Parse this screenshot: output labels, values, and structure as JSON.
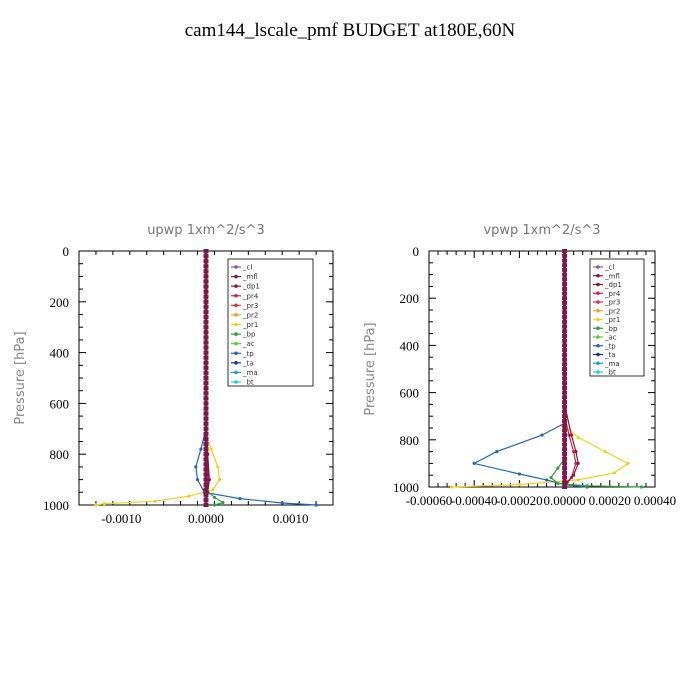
{
  "title": "cam144_lscale_pmf  BUDGET at180E,60N",
  "legend_entries": [
    "_cl",
    "_mfl",
    "_dp1",
    "_pr4",
    "_pr3",
    "_pr2",
    "_pr1",
    "_bp",
    "_ac",
    "_tp",
    "_ta",
    "_ma",
    "_bt"
  ],
  "colors": {
    "_cl": "#8855aa",
    "_mfl": "#7a1a4a",
    "_dp1": "#8b1a3a",
    "_pr4": "#cc2255",
    "_pr3": "#e03040",
    "_pr2": "#f0a030",
    "_pr1": "#f0d020",
    "_bp": "#30a040",
    "_ac": "#55cc33",
    "_tp": "#2266bb",
    "_ta": "#223399",
    "_ma": "#2299cc",
    "_bt": "#22ccdd"
  },
  "chart_data": [
    {
      "type": "line",
      "title": "upwp   1xm^2/s^3",
      "ylabel": "Pressure [hPa]",
      "xlabel": "",
      "ylim": [
        1000,
        0
      ],
      "xlim": [
        -0.0015,
        0.0015
      ],
      "xticks": [
        -0.001,
        0.0,
        0.001
      ],
      "xtick_labels": [
        "-0.0010",
        "0.0000",
        "0.0010"
      ],
      "yticks": [
        0,
        200,
        400,
        600,
        800,
        1000
      ],
      "grid": false,
      "legend_position": "top-right",
      "series": [
        {
          "name": "_cl",
          "points": [
            [
              0,
              0
            ],
            [
              0,
              1000
            ]
          ]
        },
        {
          "name": "_mfl",
          "points": [
            [
              0,
              0
            ],
            [
              0,
              1000
            ]
          ]
        },
        {
          "name": "_dp1",
          "points": [
            [
              0,
              0
            ],
            [
              0,
              600
            ],
            [
              2e-05,
              800
            ],
            [
              4e-05,
              900
            ],
            [
              2e-05,
              950
            ],
            [
              0,
              1000
            ]
          ]
        },
        {
          "name": "_pr4",
          "points": [
            [
              0,
              0
            ],
            [
              0,
              700
            ],
            [
              2e-05,
              800
            ],
            [
              3e-05,
              900
            ],
            [
              0,
              1000
            ]
          ]
        },
        {
          "name": "_pr3",
          "points": [
            [
              0,
              0
            ],
            [
              0,
              1000
            ]
          ]
        },
        {
          "name": "_pr2",
          "points": [
            [
              0,
              0
            ],
            [
              0,
              1000
            ]
          ]
        },
        {
          "name": "_pr1",
          "points": [
            [
              0,
              0
            ],
            [
              0,
              720
            ],
            [
              6e-05,
              780
            ],
            [
              0.00014,
              850
            ],
            [
              0.00016,
              900
            ],
            [
              8e-05,
              940
            ],
            [
              -0.0002,
              965
            ],
            [
              -0.0006,
              985
            ],
            [
              -0.0012,
              995
            ],
            [
              -0.0013,
              1000
            ]
          ]
        },
        {
          "name": "_bp",
          "points": [
            [
              0,
              0
            ],
            [
              0,
              940
            ],
            [
              0.0001,
              970
            ],
            [
              0.0002,
              990
            ],
            [
              0.0001,
              1000
            ]
          ]
        },
        {
          "name": "_ac",
          "points": [
            [
              0,
              0
            ],
            [
              0,
              1000
            ]
          ]
        },
        {
          "name": "_tp",
          "points": [
            [
              0,
              0
            ],
            [
              0,
              700
            ],
            [
              -6e-05,
              780
            ],
            [
              -0.00012,
              850
            ],
            [
              -0.0001,
              900
            ],
            [
              -2e-05,
              950
            ],
            [
              0.0004,
              975
            ],
            [
              0.0009,
              992
            ],
            [
              0.0013,
              1000
            ]
          ]
        },
        {
          "name": "_ta",
          "points": [
            [
              0,
              0
            ],
            [
              0,
              1000
            ]
          ]
        },
        {
          "name": "_ma",
          "points": [
            [
              0,
              0
            ],
            [
              0,
              1000
            ]
          ]
        },
        {
          "name": "_bt",
          "points": [
            [
              0,
              0
            ],
            [
              0,
              1000
            ]
          ]
        }
      ]
    },
    {
      "type": "line",
      "title": "vpwp   1xm^2/s^3",
      "ylabel": "Pressure [hPa]",
      "xlabel": "",
      "ylim": [
        1000,
        0
      ],
      "xlim": [
        -0.0006,
        0.0004
      ],
      "xticks": [
        -0.0006,
        -0.0004,
        -0.0002,
        0.0,
        0.0002,
        0.0004
      ],
      "xtick_labels": [
        "-0.00060",
        "-0.00040",
        "-0.00020",
        "0.00000",
        "0.00020",
        "0.00040"
      ],
      "yticks": [
        0,
        200,
        400,
        600,
        800,
        1000
      ],
      "grid": false,
      "legend_position": "top-right",
      "series": [
        {
          "name": "_cl",
          "points": [
            [
              0,
              0
            ],
            [
              0,
              1000
            ]
          ]
        },
        {
          "name": "_mfl",
          "points": [
            [
              0,
              0
            ],
            [
              0,
              1000
            ]
          ]
        },
        {
          "name": "_dp1",
          "points": [
            [
              0,
              0
            ],
            [
              0,
              650
            ],
            [
              3e-05,
              780
            ],
            [
              5e-05,
              850
            ],
            [
              6e-05,
              900
            ],
            [
              4e-05,
              950
            ],
            [
              1e-05,
              980
            ],
            [
              0,
              1000
            ]
          ]
        },
        {
          "name": "_pr4",
          "points": [
            [
              0,
              0
            ],
            [
              0,
              700
            ],
            [
              2e-05,
              780
            ],
            [
              4e-05,
              850
            ],
            [
              5e-05,
              900
            ],
            [
              3e-05,
              960
            ],
            [
              0,
              1000
            ]
          ]
        },
        {
          "name": "_pr3",
          "points": [
            [
              0,
              0
            ],
            [
              0,
              1000
            ]
          ]
        },
        {
          "name": "_pr2",
          "points": [
            [
              0,
              0
            ],
            [
              0,
              1000
            ]
          ]
        },
        {
          "name": "_pr1",
          "points": [
            [
              0,
              0
            ],
            [
              0,
              740
            ],
            [
              6e-05,
              790
            ],
            [
              0.00018,
              850
            ],
            [
              0.00028,
              900
            ],
            [
              0.00022,
              940
            ],
            [
              6e-05,
              970
            ],
            [
              -0.0002,
              990
            ],
            [
              -0.0005,
              1000
            ]
          ]
        },
        {
          "name": "_bp",
          "points": [
            [
              0,
              0
            ],
            [
              0,
              880
            ],
            [
              -3e-05,
              920
            ],
            [
              -6e-05,
              960
            ],
            [
              -3e-05,
              985
            ],
            [
              0.0001,
              995
            ],
            [
              0.00034,
              1000
            ]
          ]
        },
        {
          "name": "_ac",
          "points": [
            [
              0,
              0
            ],
            [
              0,
              1000
            ]
          ]
        },
        {
          "name": "_tp",
          "points": [
            [
              0,
              0
            ],
            [
              0,
              730
            ],
            [
              -0.0001,
              780
            ],
            [
              -0.0003,
              850
            ],
            [
              -0.0004,
              900
            ],
            [
              -0.0002,
              945
            ],
            [
              -8e-05,
              970
            ],
            [
              0,
              990
            ],
            [
              0.0001,
              1000
            ]
          ]
        },
        {
          "name": "_ta",
          "points": [
            [
              0,
              0
            ],
            [
              0,
              1000
            ]
          ]
        },
        {
          "name": "_ma",
          "points": [
            [
              0,
              0
            ],
            [
              0,
              1000
            ]
          ]
        },
        {
          "name": "_bt",
          "points": [
            [
              0,
              0
            ],
            [
              0,
              1000
            ]
          ]
        }
      ]
    }
  ]
}
